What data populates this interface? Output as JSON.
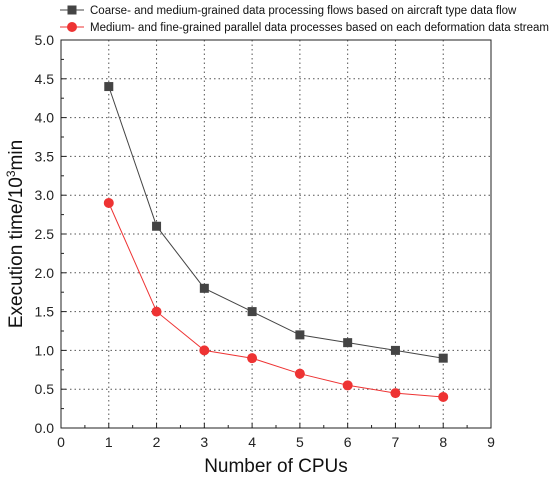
{
  "chart_data": {
    "type": "line",
    "title": "",
    "xlabel": "Number of CPUs",
    "ylabel_main": "Execution time/10",
    "ylabel_sup": "3",
    "ylabel_unit": "min",
    "xlim": [
      0,
      9
    ],
    "ylim": [
      0,
      5
    ],
    "xticks": [
      0,
      1,
      2,
      3,
      4,
      5,
      6,
      7,
      8,
      9
    ],
    "yticks": [
      "0.0",
      "0.5",
      "1.0",
      "1.5",
      "2.0",
      "2.5",
      "3.0",
      "3.5",
      "4.0",
      "4.5",
      "5.0"
    ],
    "grid": true,
    "legend_position": "top",
    "series": [
      {
        "name": "Coarse- and medium-grained data processing flows based on aircraft type data flow",
        "marker": "square",
        "color": "#444444",
        "x": [
          1,
          2,
          3,
          4,
          5,
          6,
          7,
          8
        ],
        "values": [
          4.4,
          2.6,
          1.8,
          1.5,
          1.2,
          1.1,
          1.0,
          0.9
        ]
      },
      {
        "name": "Medium- and fine-grained parallel data processes based on each deformation data stream",
        "marker": "circle",
        "color": "#ee3333",
        "x": [
          1,
          2,
          3,
          4,
          5,
          6,
          7,
          8
        ],
        "values": [
          2.9,
          1.5,
          1.0,
          0.9,
          0.7,
          0.55,
          0.45,
          0.4
        ]
      }
    ]
  }
}
